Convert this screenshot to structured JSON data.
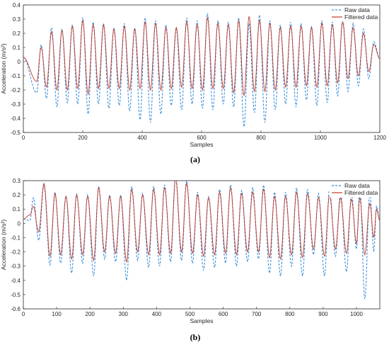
{
  "panels": [
    {
      "label": "(a)"
    },
    {
      "label": "(b)"
    }
  ],
  "chart_data": [
    {
      "type": "line",
      "panel": "(a)",
      "xlabel": "Samples",
      "ylabel": "Acceleration (m/s²)",
      "xlim": [
        0,
        1200
      ],
      "ylim": [
        -0.5,
        0.4
      ],
      "xticks": [
        0,
        200,
        400,
        600,
        800,
        1000,
        1200
      ],
      "yticks": [
        -0.5,
        -0.4,
        -0.3,
        -0.2,
        -0.1,
        0,
        0.1,
        0.2,
        0.3,
        0.4
      ],
      "grid": false,
      "legend_position": "top-right",
      "colors": {
        "raw": "#3a8fd9",
        "filtered": "#c0392b"
      },
      "series": [
        {
          "name": "Raw data",
          "style": "dashed",
          "peaks_x": [
            60,
            95,
            130,
            165,
            200,
            235,
            270,
            305,
            340,
            375,
            410,
            445,
            480,
            515,
            550,
            585,
            620,
            655,
            690,
            725,
            760,
            795,
            830,
            865,
            900,
            935,
            970,
            1005,
            1040,
            1075,
            1110,
            1145,
            1180
          ],
          "peaks": [
            0.12,
            0.24,
            0.23,
            0.26,
            0.31,
            0.28,
            0.27,
            0.24,
            0.27,
            0.24,
            0.31,
            0.29,
            0.26,
            0.24,
            0.31,
            0.29,
            0.34,
            0.29,
            0.28,
            0.31,
            0.27,
            0.33,
            0.29,
            0.26,
            0.28,
            0.27,
            0.25,
            0.29,
            0.28,
            0.3,
            0.27,
            0.23,
            0.14
          ],
          "troughs_x": [
            45,
            78,
            113,
            148,
            183,
            218,
            253,
            288,
            323,
            358,
            393,
            428,
            463,
            498,
            533,
            568,
            603,
            638,
            673,
            708,
            743,
            778,
            813,
            848,
            883,
            918,
            953,
            988,
            1023,
            1058,
            1093,
            1128,
            1163
          ],
          "troughs": [
            -0.22,
            -0.26,
            -0.32,
            -0.29,
            -0.3,
            -0.37,
            -0.3,
            -0.33,
            -0.31,
            -0.35,
            -0.41,
            -0.43,
            -0.37,
            -0.31,
            -0.34,
            -0.3,
            -0.33,
            -0.34,
            -0.3,
            -0.32,
            -0.46,
            -0.36,
            -0.43,
            -0.34,
            -0.3,
            -0.32,
            -0.27,
            -0.31,
            -0.29,
            -0.24,
            -0.21,
            -0.17,
            -0.12
          ]
        },
        {
          "name": "Filtered data",
          "style": "solid",
          "peaks_x": [
            60,
            95,
            130,
            165,
            200,
            235,
            270,
            305,
            340,
            375,
            410,
            445,
            480,
            515,
            550,
            585,
            620,
            655,
            690,
            725,
            760,
            795,
            830,
            865,
            900,
            935,
            970,
            1005,
            1040,
            1075,
            1110,
            1145,
            1180
          ],
          "peaks": [
            0.1,
            0.21,
            0.22,
            0.25,
            0.29,
            0.26,
            0.26,
            0.23,
            0.25,
            0.23,
            0.28,
            0.27,
            0.24,
            0.24,
            0.28,
            0.26,
            0.31,
            0.27,
            0.26,
            0.29,
            0.32,
            0.29,
            0.27,
            0.24,
            0.25,
            0.25,
            0.24,
            0.27,
            0.26,
            0.28,
            0.24,
            0.2,
            0.12
          ],
          "troughs_x": [
            45,
            78,
            113,
            148,
            183,
            218,
            253,
            288,
            323,
            358,
            393,
            428,
            463,
            498,
            533,
            568,
            603,
            638,
            673,
            708,
            743,
            778,
            813,
            848,
            883,
            918,
            953,
            988,
            1023,
            1058,
            1093,
            1128,
            1163
          ],
          "troughs": [
            -0.14,
            -0.18,
            -0.2,
            -0.2,
            -0.19,
            -0.23,
            -0.19,
            -0.19,
            -0.19,
            -0.2,
            -0.19,
            -0.2,
            -0.2,
            -0.19,
            -0.18,
            -0.19,
            -0.2,
            -0.19,
            -0.19,
            -0.22,
            -0.24,
            -0.21,
            -0.21,
            -0.2,
            -0.18,
            -0.18,
            -0.17,
            -0.18,
            -0.17,
            -0.15,
            -0.12,
            -0.1,
            -0.07
          ]
        }
      ]
    },
    {
      "type": "line",
      "panel": "(b)",
      "xlabel": "Samples",
      "ylabel": "Acceleration (m/s²)",
      "xlim": [
        0,
        1070
      ],
      "ylim": [
        -0.6,
        0.3
      ],
      "xticks": [
        0,
        100,
        200,
        300,
        400,
        500,
        600,
        700,
        800,
        900,
        1000
      ],
      "yticks": [
        -0.6,
        -0.5,
        -0.4,
        -0.3,
        -0.2,
        -0.1,
        0,
        0.1,
        0.2,
        0.3
      ],
      "grid": false,
      "legend_position": "top-right",
      "colors": {
        "raw": "#3a8fd9",
        "filtered": "#c0392b"
      },
      "series": [
        {
          "name": "Raw data",
          "style": "dashed",
          "peaks_x": [
            30,
            62,
            95,
            128,
            160,
            193,
            226,
            259,
            292,
            325,
            358,
            391,
            424,
            457,
            490,
            523,
            556,
            589,
            622,
            655,
            688,
            721,
            754,
            787,
            820,
            853,
            886,
            919,
            952,
            985,
            1010,
            1040,
            1060
          ],
          "peaks": [
            0.18,
            0.27,
            0.22,
            0.19,
            0.21,
            0.2,
            0.26,
            0.2,
            0.2,
            0.26,
            0.21,
            0.26,
            0.27,
            0.33,
            0.3,
            0.22,
            0.19,
            0.24,
            0.27,
            0.23,
            0.25,
            0.27,
            0.22,
            0.22,
            0.25,
            0.24,
            0.21,
            0.24,
            0.22,
            0.21,
            0.26,
            0.22,
            0.12
          ],
          "troughs_x": [
            20,
            46,
            80,
            112,
            145,
            178,
            211,
            244,
            277,
            310,
            343,
            376,
            409,
            442,
            475,
            508,
            541,
            574,
            607,
            640,
            673,
            706,
            739,
            772,
            805,
            838,
            871,
            904,
            937,
            970,
            1000,
            1025,
            1052
          ],
          "troughs": [
            0.02,
            -0.12,
            -0.29,
            -0.28,
            -0.35,
            -0.28,
            -0.37,
            -0.25,
            -0.27,
            -0.4,
            -0.26,
            -0.31,
            -0.3,
            -0.27,
            -0.26,
            -0.28,
            -0.33,
            -0.31,
            -0.28,
            -0.3,
            -0.27,
            -0.25,
            -0.35,
            -0.37,
            -0.3,
            -0.37,
            -0.22,
            -0.37,
            -0.23,
            -0.34,
            -0.18,
            -0.53,
            -0.2
          ]
        },
        {
          "name": "Filtered data",
          "style": "solid",
          "peaks_x": [
            30,
            62,
            95,
            128,
            160,
            193,
            226,
            259,
            292,
            325,
            358,
            391,
            424,
            457,
            490,
            523,
            556,
            589,
            622,
            655,
            688,
            721,
            754,
            787,
            820,
            853,
            886,
            919,
            952,
            985,
            1010,
            1040,
            1060
          ],
          "peaks": [
            0.12,
            0.28,
            0.21,
            0.19,
            0.2,
            0.19,
            0.25,
            0.19,
            0.19,
            0.24,
            0.2,
            0.24,
            0.25,
            0.32,
            0.28,
            0.2,
            0.18,
            0.22,
            0.25,
            0.21,
            0.22,
            0.24,
            0.19,
            0.19,
            0.22,
            0.21,
            0.18,
            0.2,
            0.18,
            0.17,
            0.18,
            0.14,
            0.1
          ],
          "troughs_x": [
            20,
            46,
            80,
            112,
            145,
            178,
            211,
            244,
            277,
            310,
            343,
            376,
            409,
            442,
            475,
            508,
            541,
            574,
            607,
            640,
            673,
            706,
            739,
            772,
            805,
            838,
            871,
            904,
            937,
            970,
            1000,
            1025,
            1052
          ],
          "troughs": [
            0.06,
            -0.06,
            -0.23,
            -0.22,
            -0.25,
            -0.22,
            -0.26,
            -0.2,
            -0.21,
            -0.27,
            -0.2,
            -0.22,
            -0.22,
            -0.21,
            -0.2,
            -0.21,
            -0.23,
            -0.22,
            -0.21,
            -0.22,
            -0.2,
            -0.2,
            -0.24,
            -0.25,
            -0.22,
            -0.24,
            -0.18,
            -0.23,
            -0.18,
            -0.21,
            -0.14,
            -0.22,
            -0.1
          ]
        }
      ]
    }
  ]
}
